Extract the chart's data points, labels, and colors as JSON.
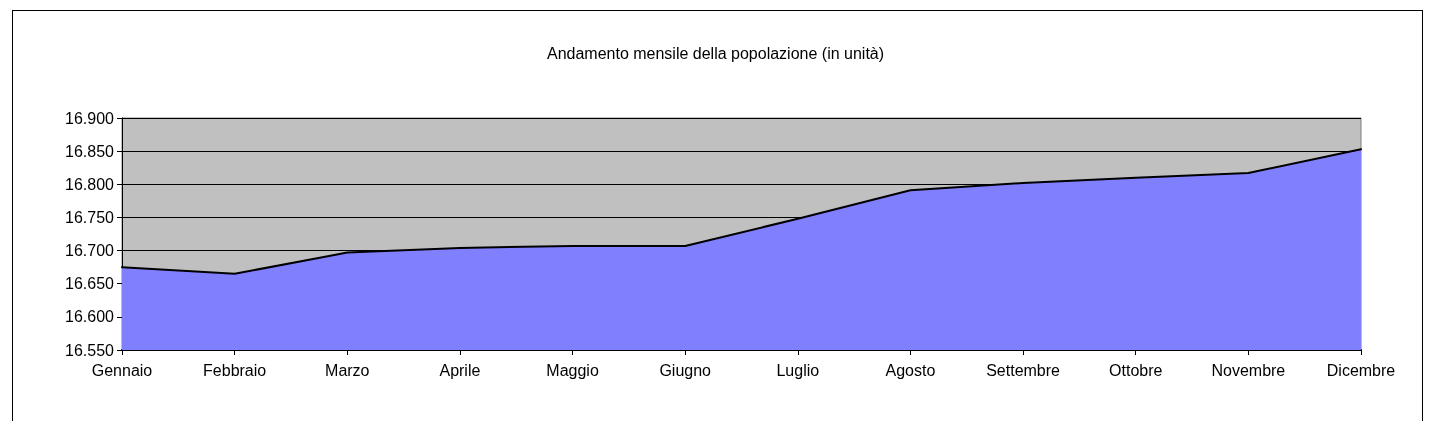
{
  "chart_data": {
    "type": "area",
    "title": "Andamento mensile della popolazione (in unità)",
    "categories": [
      "Gennaio",
      "Febbraio",
      "Marzo",
      "Aprile",
      "Maggio",
      "Giugno",
      "Luglio",
      "Agosto",
      "Settembre",
      "Ottobre",
      "Novembre",
      "Dicembre"
    ],
    "series": [
      {
        "color": "#8080ff",
        "values": [
          16675,
          16665,
          16697,
          16704,
          16707,
          16707,
          16748,
          16791,
          16802,
          16810,
          16817,
          16853
        ]
      }
    ],
    "ylim": [
      16550,
      16900
    ],
    "yticks": [
      {
        "value": 16550,
        "label": "16.550"
      },
      {
        "value": 16600,
        "label": "16.600"
      },
      {
        "value": 16650,
        "label": "16.650"
      },
      {
        "value": 16700,
        "label": "16.700"
      },
      {
        "value": 16750,
        "label": "16.750"
      },
      {
        "value": 16800,
        "label": "16.800"
      },
      {
        "value": 16850,
        "label": "16.850"
      },
      {
        "value": 16900,
        "label": "16.900"
      }
    ],
    "grid": "y",
    "marker": "none",
    "line_style": "solid"
  }
}
